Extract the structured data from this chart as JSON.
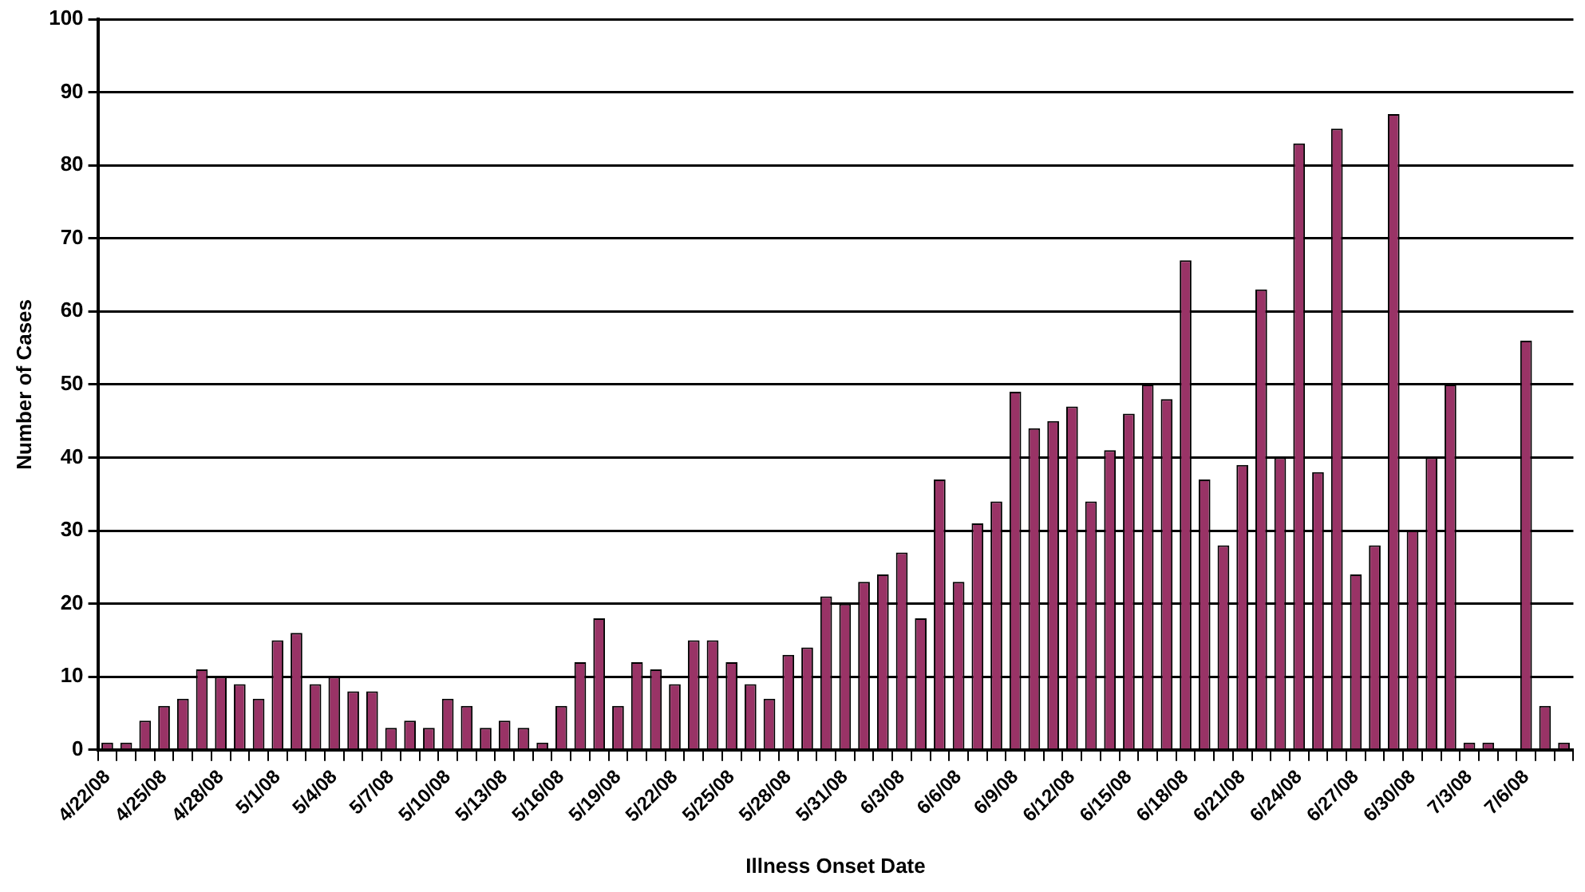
{
  "chart_data": {
    "type": "bar",
    "xlabel": "Illness Onset Date",
    "ylabel": "Number of Cases",
    "categories": [
      "4/22/08",
      null,
      null,
      "4/25/08",
      null,
      null,
      "4/28/08",
      null,
      null,
      "5/1/08",
      null,
      null,
      "5/4/08",
      null,
      null,
      "5/7/08",
      null,
      null,
      "5/10/08",
      null,
      null,
      "5/13/08",
      null,
      null,
      "5/16/08",
      null,
      null,
      "5/19/08",
      null,
      null,
      "5/22/08",
      null,
      null,
      "5/25/08",
      null,
      null,
      "5/28/08",
      null,
      null,
      "5/31/08",
      null,
      null,
      "6/3/08",
      null,
      null,
      "6/6/08",
      null,
      null,
      "6/9/08",
      null,
      null,
      "6/12/08",
      null,
      null,
      "6/15/08",
      null,
      null,
      "6/18/08",
      null,
      null,
      "6/21/08",
      null,
      null,
      "6/24/08",
      null,
      null,
      "6/27/08",
      null,
      null,
      "6/30/08",
      null,
      null,
      "7/3/08",
      null,
      null,
      "7/6/08",
      null,
      null
    ],
    "values": [
      1,
      1,
      4,
      6,
      7,
      11,
      10,
      9,
      7,
      15,
      16,
      9,
      10,
      8,
      8,
      3,
      4,
      3,
      7,
      6,
      3,
      4,
      3,
      1,
      6,
      12,
      18,
      6,
      12,
      11,
      9,
      15,
      15,
      12,
      9,
      7,
      13,
      14,
      21,
      20,
      23,
      24,
      27,
      18,
      37,
      23,
      31,
      34,
      49,
      44,
      45,
      47,
      34,
      41,
      46,
      50,
      48,
      67,
      37,
      28,
      39,
      63,
      40,
      83,
      38,
      85,
      24,
      28,
      87,
      30,
      40,
      50,
      1,
      1,
      0,
      56,
      6,
      1
    ],
    "color": "#993366",
    "ylim": [
      0,
      100
    ],
    "yticks": [
      0,
      10,
      20,
      30,
      40,
      50,
      60,
      70,
      80,
      90,
      100
    ],
    "grid": "y"
  }
}
